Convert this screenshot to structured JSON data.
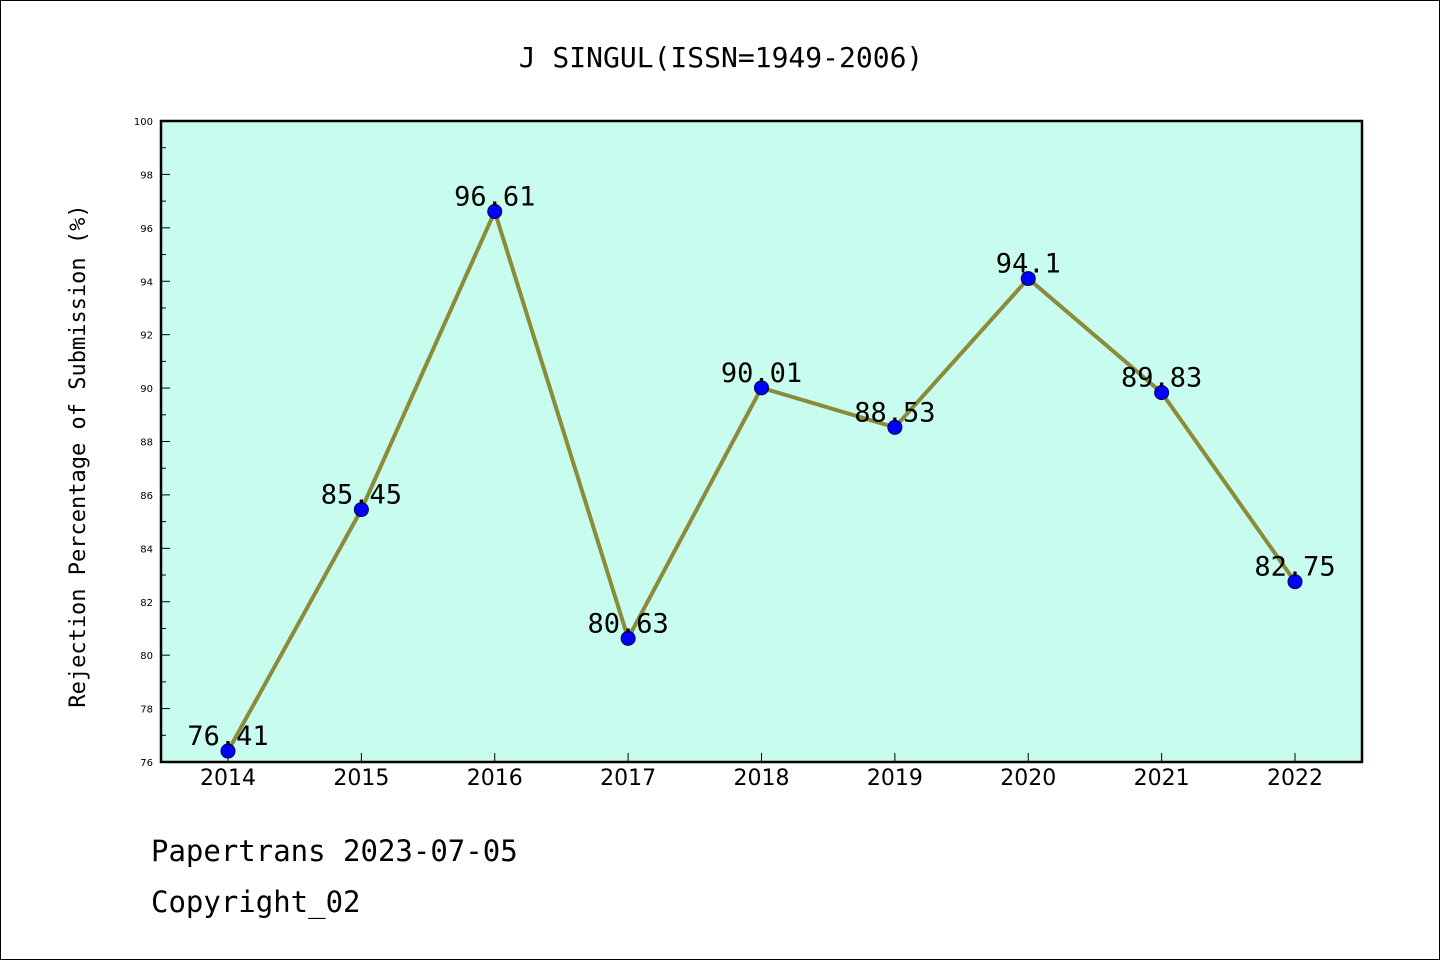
{
  "chart_data": {
    "type": "line",
    "title": "J SINGUL(ISSN=1949-2006)",
    "xlabel": "",
    "ylabel": "Rejection Percentage of Submission (%)",
    "categories": [
      "2014",
      "2015",
      "2016",
      "2017",
      "2018",
      "2019",
      "2020",
      "2021",
      "2022"
    ],
    "series": [
      {
        "values": [
          76.41,
          85.45,
          96.61,
          80.63,
          90.01,
          88.53,
          94.1,
          89.83,
          82.75
        ],
        "labels": [
          "76.41",
          "85.45",
          "96.61",
          "80.63",
          "90.01",
          "88.53",
          "94.1",
          "89.83",
          "82.75"
        ],
        "line_color": "#8b8b3a",
        "marker_color": "#0000ff"
      }
    ],
    "ylim": [
      76,
      100
    ],
    "yticks": [
      "76",
      "78",
      "80",
      "82",
      "84",
      "86",
      "88",
      "90",
      "92",
      "94",
      "96",
      "98",
      "100"
    ],
    "plot_background": "#c8fcee",
    "grid": false,
    "legend": "none"
  },
  "footer": {
    "source": "Papertrans 2023-07-05",
    "copyright": "Copyright_02"
  }
}
